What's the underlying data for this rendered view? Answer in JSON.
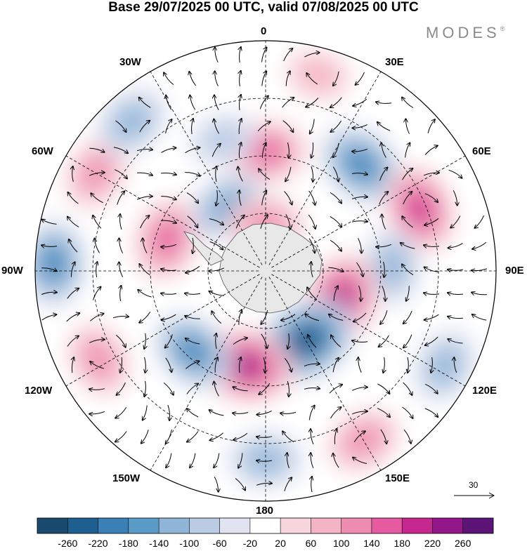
{
  "header": {
    "title": "Base 29/07/2025 00 UTC, valid 07/08/2025 00 UTC",
    "brand": "MODES",
    "brand_mark": "®"
  },
  "map": {
    "projection": "south-polar-stereographic",
    "longitude_labels": {
      "n": "0",
      "e30": "30E",
      "e60": "60E",
      "e90": "90E",
      "e120": "120E",
      "e150": "150E",
      "s": "180",
      "w150": "150W",
      "w120": "120W",
      "w90": "90W",
      "w60": "60W",
      "w30": "30W"
    },
    "anomalies": [
      {
        "lon": 0,
        "rad": 0.52,
        "value": 160
      },
      {
        "lon": 15,
        "rad": 0.88,
        "value": 60
      },
      {
        "lon": 42,
        "rad": 0.62,
        "value": -200
      },
      {
        "lon": 68,
        "rad": 0.72,
        "value": 190
      },
      {
        "lon": 88,
        "rad": 0.55,
        "value": -120
      },
      {
        "lon": 112,
        "rad": 0.35,
        "value": 230
      },
      {
        "lon": 150,
        "rad": 0.35,
        "value": -270
      },
      {
        "lon": 118,
        "rad": 0.88,
        "value": -120
      },
      {
        "lon": 150,
        "rad": 0.85,
        "value": 120
      },
      {
        "lon": 180,
        "rad": 0.82,
        "value": -120
      },
      {
        "lon": -168,
        "rad": 0.42,
        "value": 240
      },
      {
        "lon": -138,
        "rad": 0.47,
        "value": -180
      },
      {
        "lon": -118,
        "rad": 0.82,
        "value": 120
      },
      {
        "lon": -88,
        "rad": 0.92,
        "value": -180
      },
      {
        "lon": -72,
        "rad": 0.45,
        "value": 160
      },
      {
        "lon": -60,
        "rad": 0.85,
        "value": 110
      },
      {
        "lon": -30,
        "rad": 0.32,
        "value": -160
      },
      {
        "lon": 0,
        "rad": 0.2,
        "value": 130
      },
      {
        "lon": -42,
        "rad": 0.87,
        "value": -130
      },
      {
        "lon": -18,
        "rad": 0.6,
        "value": -80
      }
    ]
  },
  "colorbar": {
    "ticks": [
      "-260",
      "-220",
      "-180",
      "-140",
      "-100",
      "-60",
      "-20",
      "20",
      "60",
      "100",
      "140",
      "180",
      "220",
      "260"
    ],
    "colors": [
      "#1a4a6e",
      "#1f5f8f",
      "#3a7fb5",
      "#5b9bc8",
      "#8fb6d9",
      "#b9cce4",
      "#e0e3f0",
      "#ffffff",
      "#f8d7dc",
      "#f4b4c3",
      "#ee8db0",
      "#e55aa0",
      "#c72890",
      "#931788",
      "#5c1477"
    ]
  },
  "vector_reference": {
    "label": "30"
  }
}
